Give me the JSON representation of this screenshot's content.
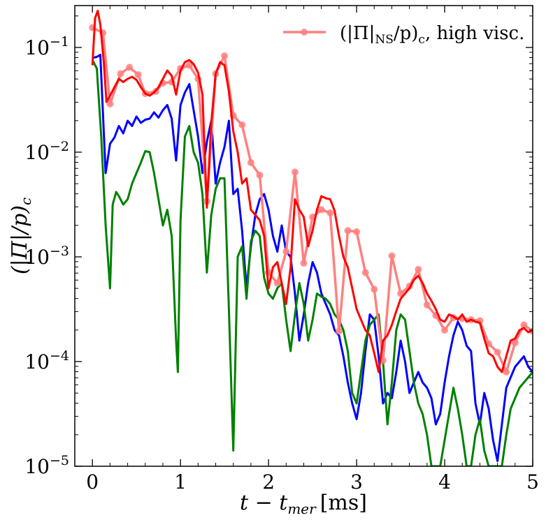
{
  "chart_data": {
    "type": "line",
    "title": "",
    "xlabel": "t − t_mer [ms]",
    "xlabel_main": "t − t",
    "xlabel_sub": "mer",
    "xlabel_unit": "[ms]",
    "ylabel": "(|Π|/p)_c",
    "ylabel_main": "(|Π|/p)",
    "ylabel_sub": "c",
    "xlim": [
      -0.2,
      5.0
    ],
    "ylim_log10": [
      -5,
      -0.6
    ],
    "yscale": "log",
    "x_ticks": [
      {
        "value": 0,
        "label": "0"
      },
      {
        "value": 1,
        "label": "1"
      },
      {
        "value": 2,
        "label": "2"
      },
      {
        "value": 3,
        "label": "3"
      },
      {
        "value": 4,
        "label": "4"
      },
      {
        "value": 5,
        "label": "5"
      }
    ],
    "y_ticks": [
      {
        "exp": -1,
        "base": "10",
        "sup": "−1"
      },
      {
        "exp": -2,
        "base": "10",
        "sup": "−2"
      },
      {
        "exp": -3,
        "base": "10",
        "sup": "−3"
      },
      {
        "exp": -4,
        "base": "10",
        "sup": "−4"
      },
      {
        "exp": -5,
        "base": "10",
        "sup": "−5"
      }
    ],
    "legend": {
      "position": "top-right",
      "label_main": "(|Π|",
      "label_sub": "NS",
      "label_rest": "/p)",
      "label_sub2": "c",
      "label_tail": ", high visc."
    },
    "series": [
      {
        "name": "(|Π|_NS/p)_c, high visc.",
        "color": "#ff8080",
        "markers": true,
        "x": [
          0.0,
          0.12,
          0.2,
          0.32,
          0.42,
          0.52,
          0.6,
          0.72,
          0.8,
          0.9,
          1.0,
          1.1,
          1.2,
          1.3,
          1.4,
          1.5,
          1.6,
          1.7,
          1.8,
          1.9,
          2.0,
          2.1,
          2.2,
          2.3,
          2.4,
          2.5,
          2.6,
          2.7,
          2.8,
          2.9,
          3.0,
          3.1,
          3.2,
          3.3,
          3.4,
          3.5,
          3.6,
          3.7,
          3.8,
          3.9,
          4.0,
          4.1,
          4.2,
          4.3,
          4.4,
          4.5,
          4.6,
          4.7,
          4.8,
          4.9,
          5.0
        ],
        "y_log10": [
          -0.81,
          -0.86,
          -1.54,
          -1.25,
          -1.19,
          -1.26,
          -1.44,
          -1.42,
          -1.34,
          -1.33,
          -1.2,
          -1.17,
          -1.3,
          -2.47,
          -1.25,
          -1.08,
          -1.65,
          -1.74,
          -2.1,
          -2.22,
          -3.15,
          -3.25,
          -2.95,
          -2.19,
          -3.06,
          -2.62,
          -2.55,
          -2.58,
          -3.71,
          -2.75,
          -2.76,
          -3.15,
          -3.31,
          -3.99,
          -2.99,
          -3.35,
          -3.28,
          -3.12,
          -3.46,
          -3.56,
          -3.7,
          -3.58,
          -3.59,
          -3.6,
          -3.61,
          -3.83,
          -3.91,
          -4.1,
          -3.82,
          -3.65,
          -3.71
        ]
      },
      {
        "name": "red",
        "color": "#ff0000",
        "markers": false,
        "x": [
          0.0,
          0.03,
          0.06,
          0.09,
          0.13,
          0.16,
          0.2,
          0.25,
          0.3,
          0.35,
          0.4,
          0.45,
          0.5,
          0.55,
          0.6,
          0.65,
          0.7,
          0.75,
          0.8,
          0.85,
          0.9,
          0.95,
          1.0,
          1.05,
          1.1,
          1.15,
          1.2,
          1.25,
          1.3,
          1.35,
          1.4,
          1.45,
          1.5,
          1.55,
          1.6,
          1.65,
          1.7,
          1.75,
          1.8,
          1.85,
          1.9,
          1.95,
          2.0,
          2.05,
          2.1,
          2.15,
          2.2,
          2.25,
          2.3,
          2.35,
          2.4,
          2.45,
          2.5,
          2.55,
          2.6,
          2.65,
          2.7,
          2.75,
          2.8,
          2.85,
          2.9,
          2.95,
          3.0,
          3.05,
          3.1,
          3.15,
          3.2,
          3.25,
          3.3,
          3.35,
          3.4,
          3.45,
          3.5,
          3.55,
          3.6,
          3.65,
          3.7,
          3.75,
          3.8,
          3.85,
          3.9,
          3.95,
          4.0,
          4.05,
          4.1,
          4.15,
          4.2,
          4.25,
          4.3,
          4.35,
          4.4,
          4.45,
          4.5,
          4.55,
          4.6,
          4.65,
          4.7,
          4.75,
          4.8,
          4.85,
          4.9,
          4.95,
          5.0
        ],
        "y_log10": [
          -1.17,
          -0.72,
          -0.65,
          -0.78,
          -1.15,
          -1.52,
          -1.46,
          -1.38,
          -1.3,
          -1.33,
          -1.3,
          -1.28,
          -1.31,
          -1.38,
          -1.44,
          -1.46,
          -1.43,
          -1.38,
          -1.3,
          -1.22,
          -1.27,
          -1.45,
          -1.22,
          -1.14,
          -1.12,
          -1.16,
          -1.24,
          -1.45,
          -2.53,
          -1.72,
          -1.25,
          -1.14,
          -1.17,
          -1.42,
          -1.8,
          -2.0,
          -2.3,
          -2.25,
          -2.55,
          -2.6,
          -2.65,
          -2.8,
          -3.3,
          -3.1,
          -3.05,
          -3.25,
          -3.45,
          -3.1,
          -2.45,
          -2.55,
          -2.62,
          -2.9,
          -2.75,
          -2.55,
          -2.42,
          -2.44,
          -2.45,
          -2.56,
          -2.8,
          -3.0,
          -3.1,
          -3.3,
          -3.5,
          -3.6,
          -3.7,
          -3.75,
          -3.92,
          -4.1,
          -3.8,
          -3.75,
          -3.65,
          -3.52,
          -3.4,
          -3.35,
          -3.3,
          -3.22,
          -3.18,
          -3.25,
          -3.35,
          -3.42,
          -3.5,
          -3.6,
          -3.62,
          -3.55,
          -3.57,
          -3.6,
          -3.55,
          -3.62,
          -3.6,
          -3.62,
          -3.63,
          -3.78,
          -3.92,
          -3.95,
          -4.05,
          -4.1,
          -3.95,
          -3.8,
          -3.78,
          -3.7,
          -3.68,
          -3.72,
          -3.7
        ]
      },
      {
        "name": "blue",
        "color": "#0000ff",
        "markers": false,
        "x": [
          0.0,
          0.05,
          0.09,
          0.15,
          0.2,
          0.25,
          0.3,
          0.35,
          0.4,
          0.45,
          0.5,
          0.55,
          0.6,
          0.65,
          0.7,
          0.75,
          0.8,
          0.85,
          0.9,
          0.95,
          1.0,
          1.05,
          1.1,
          1.15,
          1.2,
          1.25,
          1.3,
          1.35,
          1.4,
          1.45,
          1.5,
          1.55,
          1.6,
          1.65,
          1.7,
          1.75,
          1.8,
          1.85,
          1.9,
          1.95,
          2.0,
          2.05,
          2.1,
          2.15,
          2.2,
          2.25,
          2.3,
          2.35,
          2.4,
          2.45,
          2.5,
          2.55,
          2.6,
          2.65,
          2.7,
          2.75,
          2.8,
          2.85,
          2.9,
          2.95,
          3.0,
          3.05,
          3.1,
          3.15,
          3.2,
          3.25,
          3.3,
          3.35,
          3.4,
          3.45,
          3.5,
          3.55,
          3.6,
          3.65,
          3.7,
          3.75,
          3.8,
          3.85,
          3.9,
          3.95,
          4.0,
          4.05,
          4.1,
          4.15,
          4.2,
          4.25,
          4.3,
          4.35,
          4.4,
          4.45,
          4.5,
          4.55,
          4.6,
          4.65,
          4.7,
          4.75,
          4.8,
          4.85,
          4.9,
          4.95,
          5.0
        ],
        "y_log10": [
          -1.1,
          -1.09,
          -1.07,
          -2.2,
          -1.92,
          -1.86,
          -1.75,
          -1.82,
          -1.7,
          -1.75,
          -1.66,
          -1.72,
          -1.69,
          -1.68,
          -1.62,
          -1.67,
          -1.6,
          -1.55,
          -1.68,
          -2.08,
          -1.55,
          -1.43,
          -1.35,
          -1.6,
          -1.85,
          -2.2,
          -1.9,
          -1.7,
          -2.3,
          -2.1,
          -1.95,
          -1.7,
          -2.4,
          -2.35,
          -2.75,
          -3.3,
          -2.9,
          -2.6,
          -2.45,
          -2.4,
          -2.55,
          -2.8,
          -2.95,
          -2.7,
          -2.95,
          -3.0,
          -3.35,
          -3.8,
          -3.55,
          -3.25,
          -3.05,
          -3.15,
          -3.35,
          -3.45,
          -3.55,
          -3.7,
          -3.75,
          -3.95,
          -4.2,
          -4.4,
          -4.55,
          -4.3,
          -3.9,
          -3.55,
          -3.6,
          -3.95,
          -4.4,
          -4.3,
          -4.35,
          -4.1,
          -3.8,
          -4.0,
          -4.3,
          -4.2,
          -4.1,
          -4.2,
          -4.25,
          -4.35,
          -4.6,
          -4.5,
          -4.2,
          -3.95,
          -3.75,
          -3.62,
          -3.7,
          -3.85,
          -3.9,
          -4.4,
          -4.6,
          -4.3,
          -4.45,
          -4.75,
          -4.95,
          -4.6,
          -4.25,
          -4.15,
          -4.05,
          -4.0,
          -3.95,
          -4.05,
          -4.1
        ]
      },
      {
        "name": "green",
        "color": "#008000",
        "markers": false,
        "x": [
          0.0,
          0.05,
          0.1,
          0.15,
          0.2,
          0.23,
          0.27,
          0.3,
          0.35,
          0.4,
          0.45,
          0.5,
          0.55,
          0.6,
          0.65,
          0.7,
          0.75,
          0.8,
          0.85,
          0.9,
          0.95,
          0.97,
          1.0,
          1.05,
          1.1,
          1.15,
          1.2,
          1.25,
          1.3,
          1.35,
          1.4,
          1.45,
          1.5,
          1.55,
          1.6,
          1.65,
          1.7,
          1.75,
          1.8,
          1.85,
          1.9,
          1.95,
          2.0,
          2.05,
          2.1,
          2.15,
          2.2,
          2.25,
          2.3,
          2.35,
          2.4,
          2.45,
          2.5,
          2.55,
          2.6,
          2.65,
          2.7,
          2.75,
          2.8,
          2.85,
          2.9,
          2.95,
          3.0,
          3.05,
          3.1,
          3.15,
          3.2,
          3.25,
          3.3,
          3.35,
          3.4,
          3.45,
          3.5,
          3.55,
          3.6,
          3.65,
          3.7,
          3.75,
          3.8,
          3.85,
          3.9,
          3.95,
          4.0,
          4.05,
          4.1,
          4.15,
          4.2,
          4.25,
          4.3,
          4.35,
          4.4,
          4.45,
          4.5,
          4.55,
          4.6,
          4.65,
          4.7,
          4.75,
          4.8,
          4.85,
          4.9,
          4.95,
          5.0
        ],
        "y_log10": [
          -1.12,
          -1.2,
          -1.85,
          -2.7,
          -3.3,
          -2.5,
          -2.38,
          -2.42,
          -2.5,
          -2.45,
          -2.3,
          -2.2,
          -2.1,
          -1.99,
          -2.0,
          -2.2,
          -2.45,
          -2.7,
          -2.55,
          -2.8,
          -3.8,
          -4.1,
          -2.65,
          -1.85,
          -1.75,
          -2.0,
          -2.1,
          -2.4,
          -3.15,
          -2.6,
          -2.35,
          -2.25,
          -2.25,
          -3.5,
          -4.85,
          -3.0,
          -2.9,
          -3.4,
          -2.85,
          -2.75,
          -2.8,
          -3.2,
          -3.35,
          -3.4,
          -3.3,
          -3.25,
          -3.6,
          -3.9,
          -3.55,
          -3.25,
          -3.45,
          -3.8,
          -3.6,
          -3.35,
          -3.38,
          -3.4,
          -3.45,
          -3.55,
          -3.6,
          -3.7,
          -3.9,
          -4.3,
          -4.4,
          -4.1,
          -3.8,
          -3.65,
          -3.6,
          -3.55,
          -4.0,
          -4.6,
          -4.2,
          -3.7,
          -3.55,
          -3.6,
          -3.9,
          -4.2,
          -4.4,
          -4.5,
          -4.7,
          -5.0,
          -5.0,
          -5.0,
          -4.75,
          -4.5,
          -4.25,
          -4.45,
          -4.7,
          -5.0,
          -5.0,
          -4.7,
          -4.55,
          -4.85,
          -5.0,
          -5.0,
          -5.0,
          -5.0,
          -4.7,
          -4.45,
          -4.35,
          -4.25,
          -4.2,
          -4.15,
          -4.1
        ]
      }
    ]
  }
}
